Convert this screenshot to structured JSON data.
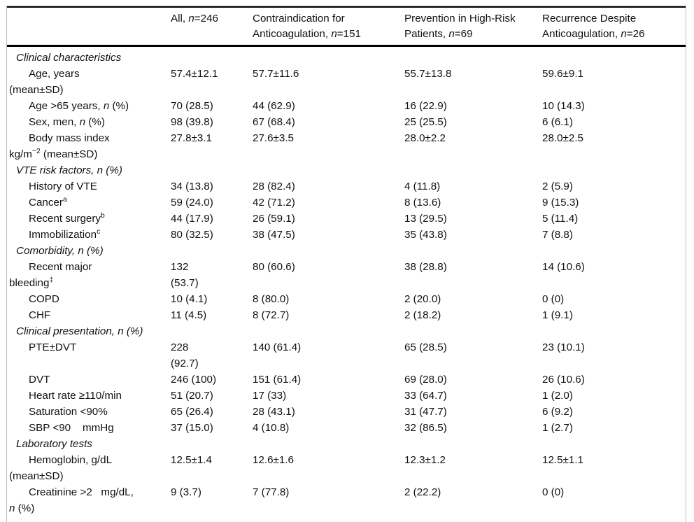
{
  "table": {
    "title": "Patient characteristics table",
    "header": [
      {
        "parts": [
          {
            "t": ""
          }
        ]
      },
      {
        "parts": [
          {
            "t": "All, "
          },
          {
            "t": "n",
            "i": 1
          },
          {
            "t": "=246"
          }
        ]
      },
      {
        "parts": [
          {
            "t": "Contraindication for Anticoagulation, "
          },
          {
            "t": "n",
            "i": 1
          },
          {
            "t": "=151"
          }
        ]
      },
      {
        "parts": [
          {
            "t": "Prevention in High-Risk Patients, "
          },
          {
            "t": "n",
            "i": 1
          },
          {
            "t": "=69"
          }
        ]
      },
      {
        "parts": [
          {
            "t": "Recurrence Despite Anticoagulation, "
          },
          {
            "t": "n",
            "i": 1
          },
          {
            "t": "=26"
          }
        ]
      }
    ],
    "rows": [
      {
        "type": "section",
        "label": {
          "parts": [
            {
              "t": "Clinical characteristics"
            }
          ]
        },
        "values": [
          "",
          "",
          "",
          ""
        ]
      },
      {
        "type": "item",
        "label": {
          "parts": [
            {
              "t": "Age, years\n(mean±SD)"
            }
          ]
        },
        "values": [
          "57.4±12.1",
          "57.7±11.6",
          "55.7±13.8",
          "59.6±9.1"
        ]
      },
      {
        "type": "item",
        "label": {
          "parts": [
            {
              "t": "Age >65 years, "
            },
            {
              "t": "n",
              "i": 1
            },
            {
              "t": " (%)"
            }
          ]
        },
        "values": [
          "70 (28.5)",
          "44 (62.9)",
          "16 (22.9)",
          "10 (14.3)"
        ]
      },
      {
        "type": "item",
        "label": {
          "parts": [
            {
              "t": "Sex, men, "
            },
            {
              "t": "n",
              "i": 1
            },
            {
              "t": " (%)"
            }
          ]
        },
        "values": [
          "98 (39.8)",
          "67 (68.4)",
          "25 (25.5)",
          "6 (6.1)"
        ]
      },
      {
        "type": "item",
        "label": {
          "parts": [
            {
              "t": "Body mass index\nkg/m"
            },
            {
              "t": "−2",
              "sup": 1
            },
            {
              "t": " (mean±SD)"
            }
          ]
        },
        "values": [
          "27.8±3.1",
          "27.6±3.5",
          "28.0±2.2",
          "28.0±2.5"
        ]
      },
      {
        "type": "section",
        "label": {
          "parts": [
            {
              "t": "VTE risk factors, n (%)"
            }
          ]
        },
        "values": [
          "",
          "",
          "",
          ""
        ]
      },
      {
        "type": "item",
        "label": {
          "parts": [
            {
              "t": "History of VTE"
            }
          ]
        },
        "values": [
          "34 (13.8)",
          "28 (82.4)",
          "4 (11.8)",
          "2 (5.9)"
        ]
      },
      {
        "type": "item",
        "label": {
          "parts": [
            {
              "t": "Cancer"
            },
            {
              "t": "a",
              "sup": 1
            }
          ]
        },
        "values": [
          "59 (24.0)",
          "42 (71.2)",
          "8 (13.6)",
          "9 (15.3)"
        ]
      },
      {
        "type": "item",
        "label": {
          "parts": [
            {
              "t": "Recent surgery"
            },
            {
              "t": "b",
              "sup": 1
            }
          ]
        },
        "values": [
          "44 (17.9)",
          "26 (59.1)",
          "13 (29.5)",
          "5 (11.4)"
        ]
      },
      {
        "type": "item",
        "label": {
          "parts": [
            {
              "t": "Immobilization"
            },
            {
              "t": "c",
              "sup": 1
            }
          ]
        },
        "values": [
          "80 (32.5)",
          "38 (47.5)",
          "35 (43.8)",
          "7 (8.8)"
        ]
      },
      {
        "type": "section",
        "label": {
          "parts": [
            {
              "t": "Comorbidity, n (%)"
            }
          ]
        },
        "values": [
          "",
          "",
          "",
          ""
        ]
      },
      {
        "type": "item",
        "label": {
          "parts": [
            {
              "t": "Recent major\nbleeding"
            },
            {
              "t": "‡",
              "sup": 1
            }
          ]
        },
        "values": [
          "132\n(53.7)",
          "80 (60.6)",
          "38 (28.8)",
          "14 (10.6)"
        ]
      },
      {
        "type": "item",
        "label": {
          "parts": [
            {
              "t": "COPD"
            }
          ]
        },
        "values": [
          "10 (4.1)",
          "8 (80.0)",
          "2 (20.0)",
          "0 (0)"
        ]
      },
      {
        "type": "item",
        "label": {
          "parts": [
            {
              "t": "CHF"
            }
          ]
        },
        "values": [
          "11 (4.5)",
          "8 (72.7)",
          "2 (18.2)",
          "1 (9.1)"
        ]
      },
      {
        "type": "section",
        "label": {
          "parts": [
            {
              "t": "Clinical presentation, n (%)"
            }
          ]
        },
        "values": [
          "",
          "",
          "",
          ""
        ]
      },
      {
        "type": "item",
        "label": {
          "parts": [
            {
              "t": "PTE±DVT"
            }
          ]
        },
        "values": [
          "228\n(92.7)",
          "140 (61.4)",
          "65 (28.5)",
          "23 (10.1)"
        ]
      },
      {
        "type": "item",
        "label": {
          "parts": [
            {
              "t": "DVT"
            }
          ]
        },
        "values": [
          "246 (100)",
          "151 (61.4)",
          "69 (28.0)",
          "26 (10.6)"
        ]
      },
      {
        "type": "item",
        "label": {
          "parts": [
            {
              "t": "Heart rate ≥110/min"
            }
          ]
        },
        "values": [
          "51 (20.7)",
          "17 (33)",
          "33 (64.7)",
          "1 (2.0)"
        ]
      },
      {
        "type": "item",
        "label": {
          "parts": [
            {
              "t": "Saturation <90%"
            }
          ]
        },
        "values": [
          "65 (26.4)",
          "28 (43.1)",
          "31 (47.7)",
          "6 (9.2)"
        ]
      },
      {
        "type": "item",
        "label": {
          "parts": [
            {
              "t": "SBP <90    mmHg"
            }
          ]
        },
        "values": [
          "37 (15.0)",
          "4 (10.8)",
          "32 (86.5)",
          "1 (2.7)"
        ]
      },
      {
        "type": "section",
        "label": {
          "parts": [
            {
              "t": "Laboratory tests"
            }
          ]
        },
        "values": [
          "",
          "",
          "",
          ""
        ]
      },
      {
        "type": "item",
        "label": {
          "parts": [
            {
              "t": "Hemoglobin, g/dL\n(mean±SD)"
            }
          ]
        },
        "values": [
          "12.5±1.4",
          "12.6±1.6",
          "12.3±1.2",
          "12.5±1.1"
        ]
      },
      {
        "type": "item",
        "label": {
          "parts": [
            {
              "t": "Creatinine >2   mg/dL,\n"
            },
            {
              "t": "n",
              "i": 1
            },
            {
              "t": " (%)"
            }
          ]
        },
        "values": [
          "9 (3.7)",
          "7 (77.8)",
          "2 (22.2)",
          "0 (0)"
        ]
      }
    ]
  }
}
